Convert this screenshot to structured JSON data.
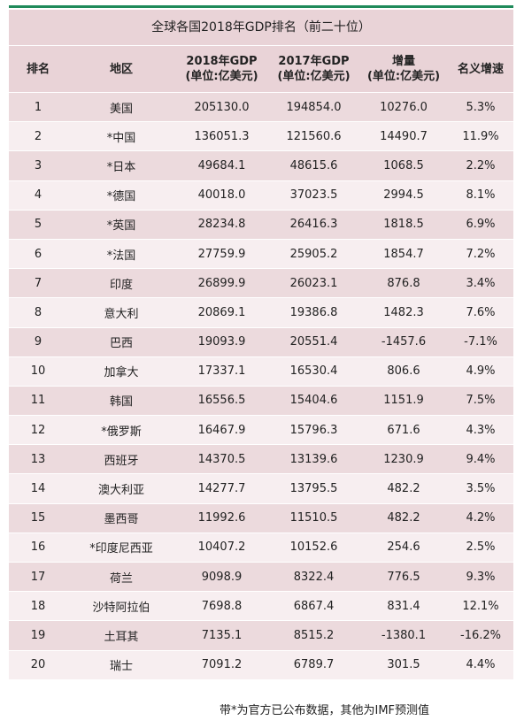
{
  "title": "全球各国2018年GDP排名（前二十位）",
  "headers": [
    "排名",
    "地区",
    "2018年GDP\n(单位:亿美元)",
    "2017年GDP\n(单位:亿美元)",
    "增量\n(单位:亿美元)",
    "名义增速"
  ],
  "rows": [
    [
      "1",
      "美国",
      "205130.0",
      "194854.0",
      "10276.0",
      "5.3%"
    ],
    [
      "2",
      "*中国",
      "136051.3",
      "121560.6",
      "14490.7",
      "11.9%"
    ],
    [
      "3",
      "*日本",
      "49684.1",
      "48615.6",
      "1068.5",
      "2.2%"
    ],
    [
      "4",
      "*德国",
      "40018.0",
      "37023.5",
      "2994.5",
      "8.1%"
    ],
    [
      "5",
      "*英国",
      "28234.8",
      "26416.3",
      "1818.5",
      "6.9%"
    ],
    [
      "6",
      "*法国",
      "27759.9",
      "25905.2",
      "1854.7",
      "7.2%"
    ],
    [
      "7",
      "印度",
      "26899.9",
      "26023.1",
      "876.8",
      "3.4%"
    ],
    [
      "8",
      "意大利",
      "20869.1",
      "19386.8",
      "1482.3",
      "7.6%"
    ],
    [
      "9",
      "巴西",
      "19093.9",
      "20551.4",
      "-1457.6",
      "-7.1%"
    ],
    [
      "10",
      "加拿大",
      "17337.1",
      "16530.4",
      "806.6",
      "4.9%"
    ],
    [
      "11",
      "韩国",
      "16556.5",
      "15404.6",
      "1151.9",
      "7.5%"
    ],
    [
      "12",
      "*俄罗斯",
      "16467.9",
      "15796.3",
      "671.6",
      "4.3%"
    ],
    [
      "13",
      "西班牙",
      "14370.5",
      "13139.6",
      "1230.9",
      "9.4%"
    ],
    [
      "14",
      "澳大利亚",
      "14277.7",
      "13795.5",
      "482.2",
      "3.5%"
    ],
    [
      "15",
      "墨西哥",
      "11992.6",
      "11510.5",
      "482.2",
      "4.2%"
    ],
    [
      "16",
      "*印度尼西亚",
      "10407.2",
      "10152.6",
      "254.6",
      "2.5%"
    ],
    [
      "17",
      "荷兰",
      "9098.9",
      "8322.4",
      "776.5",
      "9.3%"
    ],
    [
      "18",
      "沙特阿拉伯",
      "7698.8",
      "6867.4",
      "831.4",
      "12.1%"
    ],
    [
      "19",
      "土耳其",
      "7135.1",
      "8515.2",
      "-1380.1",
      "-16.2%"
    ],
    [
      "20",
      "瑞士",
      "7091.2",
      "6789.7",
      "301.5",
      "4.4%"
    ]
  ],
  "footnote": "带*为官方已公布数据，其他为IMF预测值"
}
